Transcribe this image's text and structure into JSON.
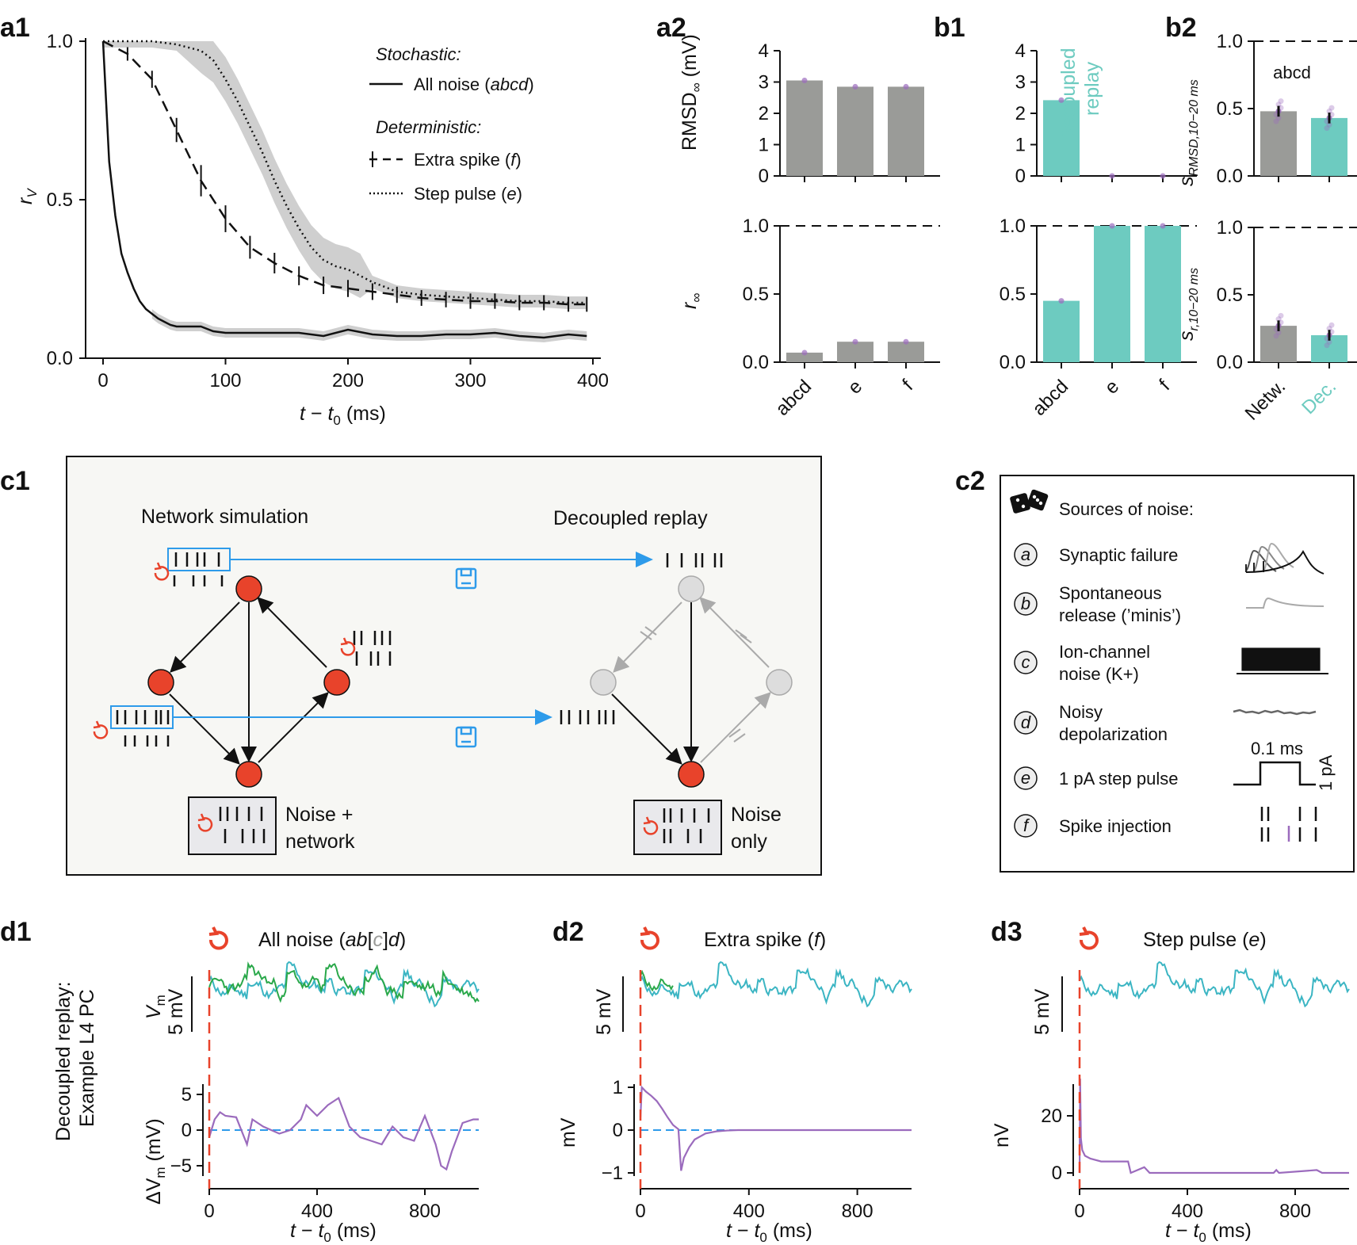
{
  "panel_labels": {
    "a1": "a1",
    "a2": "a2",
    "b1": "b1",
    "b2": "b2",
    "c1": "c1",
    "c2": "c2",
    "d1": "d1",
    "d2": "d2",
    "d3": "d3"
  },
  "colors": {
    "gray_bar": "#9a9b98",
    "teal": "#6dcbc0",
    "purple": "#9b6bbd",
    "green": "#2aa84a",
    "cyan": "#3bb5c3",
    "red": "#e8432b",
    "blue": "#2e9bea",
    "band": "#cfcfcf"
  },
  "a1": {
    "xlabel_t": "t",
    "xlabel_minus": " − ",
    "xlabel_t0": "t",
    "xlabel_sub0": "0",
    "xlabel_unit": " (ms)",
    "ylabel": "r",
    "ylabel_sub": "V",
    "legend": {
      "stochastic_heading": "Stochastic:",
      "all_noise": "All noise (",
      "all_noise_it": "abcd",
      "all_noise_end": ")",
      "deterministic_heading": "Deterministic:",
      "extra_spike": "Extra spike (",
      "extra_spike_it": "f",
      "extra_spike_end": ")",
      "step_pulse": "Step pulse (",
      "step_pulse_it": "e",
      "step_pulse_end": ")"
    }
  },
  "a2": {
    "top_ylabel": "RMSD",
    "top_ylabel_sub": "∞",
    "top_ylabel_unit": " (mV)",
    "bottom_ylabel": "r",
    "bottom_ylabel_sub": "∞"
  },
  "b1": {
    "annotation_line1": "Decoupled",
    "annotation_line2": "replay"
  },
  "b2": {
    "top_ylabel": "s",
    "top_ylabel_sub": "RMSD,10−20 ms",
    "bottom_ylabel": "s",
    "bottom_ylabel_sub": "r,10−20 ms",
    "annotation": "abcd"
  },
  "c1": {
    "network_title": "Network simulation",
    "replay_title": "Decoupled replay",
    "box_left_line1": "Noise +",
    "box_left_line2": "network",
    "box_right_line1": "Noise",
    "box_right_line2": "only"
  },
  "c2": {
    "heading": "Sources of noise:",
    "items": [
      {
        "key": "a",
        "label1": "Synaptic failure",
        "label2": ""
      },
      {
        "key": "b",
        "label1": "Spontaneous",
        "label2": "release (’minis’)"
      },
      {
        "key": "c",
        "label1": "Ion-channel",
        "label2": "noise (K+)"
      },
      {
        "key": "d",
        "label1": "Noisy",
        "label2": "depolarization"
      },
      {
        "key": "e",
        "label1": "1 pA step pulse",
        "label2": ""
      },
      {
        "key": "f",
        "label1": "Spike injection",
        "label2": ""
      }
    ],
    "pulse_width_label": "0.1 ms",
    "pulse_height_label": "1 pA"
  },
  "d": {
    "side_label1": "Decoupled replay:",
    "side_label2": "Example L4 PC",
    "vm_label": "V",
    "vm_sub": "m",
    "scale_5mv": "5 mV",
    "delta_label": "ΔV",
    "delta_sub": "m",
    "delta_unit": " (mV)",
    "mv_label": "mV",
    "nv_label": "nV",
    "d1_title": "All noise (",
    "d1_title_it1": "ab",
    "d1_title_bracket_open": "[",
    "d1_title_c": "c",
    "d1_title_bracket_close": "]",
    "d1_title_it2": "d",
    "d1_title_end": ")",
    "d2_title": "Extra spike (",
    "d2_title_it": "f",
    "d2_title_end": ")",
    "d3_title": "Step pulse (",
    "d3_title_it": "e",
    "d3_title_end": ")",
    "xlabel_t": "t",
    "xlabel_minus": " − ",
    "xlabel_t0": "t",
    "xlabel_sub0": "0",
    "xlabel_unit": " (ms)"
  },
  "chart_data": [
    {
      "id": "a1",
      "type": "line",
      "xlabel": "t − t0 (ms)",
      "ylabel": "rV",
      "xlim": [
        0,
        400
      ],
      "ylim": [
        0,
        1
      ],
      "xticks": [
        "0",
        "100",
        "200",
        "300",
        "400"
      ],
      "yticks": [
        "0.0",
        "0.5",
        "1.0"
      ],
      "series": [
        {
          "name": "All noise (abcd)",
          "style": "solid",
          "x": [
            0,
            5,
            10,
            15,
            20,
            25,
            30,
            35,
            40,
            45,
            50,
            55,
            60,
            70,
            80,
            90,
            100,
            120,
            140,
            160,
            180,
            200,
            220,
            240,
            260,
            280,
            300,
            320,
            340,
            360,
            380,
            395
          ],
          "y": [
            1.0,
            0.62,
            0.45,
            0.33,
            0.27,
            0.22,
            0.18,
            0.155,
            0.14,
            0.125,
            0.115,
            0.105,
            0.1,
            0.1,
            0.1,
            0.085,
            0.08,
            0.08,
            0.08,
            0.08,
            0.07,
            0.09,
            0.075,
            0.07,
            0.07,
            0.075,
            0.075,
            0.08,
            0.07,
            0.065,
            0.075,
            0.07
          ]
        },
        {
          "name": "Extra spike (f)",
          "style": "dashed",
          "x": [
            0,
            20,
            40,
            60,
            80,
            100,
            120,
            140,
            160,
            180,
            200,
            220,
            240,
            260,
            280,
            300,
            320,
            340,
            360,
            380,
            395
          ],
          "y": [
            1.0,
            0.96,
            0.88,
            0.72,
            0.56,
            0.44,
            0.35,
            0.3,
            0.26,
            0.23,
            0.22,
            0.21,
            0.2,
            0.19,
            0.185,
            0.18,
            0.18,
            0.175,
            0.175,
            0.17,
            0.17
          ]
        },
        {
          "name": "Step pulse (e)",
          "style": "dotted",
          "x": [
            0,
            40,
            60,
            80,
            90,
            100,
            110,
            120,
            130,
            140,
            150,
            160,
            170,
            180,
            190,
            200,
            210,
            220,
            240,
            260,
            280,
            300,
            320,
            340,
            360,
            380,
            395
          ],
          "y": [
            1.0,
            1.0,
            0.99,
            0.97,
            0.94,
            0.88,
            0.81,
            0.73,
            0.65,
            0.56,
            0.48,
            0.41,
            0.35,
            0.31,
            0.29,
            0.28,
            0.26,
            0.24,
            0.21,
            0.2,
            0.195,
            0.19,
            0.185,
            0.18,
            0.18,
            0.175,
            0.175
          ]
        }
      ]
    },
    {
      "id": "a2_top",
      "type": "bar",
      "categories": [
        "abcd",
        "e",
        "f"
      ],
      "values": [
        3.05,
        2.85,
        2.85
      ],
      "ylabel": "RMSD∞ (mV)",
      "ylim": [
        0,
        4
      ],
      "yticks": [
        "0",
        "1",
        "2",
        "3",
        "4"
      ]
    },
    {
      "id": "a2_bottom",
      "type": "bar",
      "categories": [
        "abcd",
        "e",
        "f"
      ],
      "values": [
        0.07,
        0.15,
        0.15
      ],
      "ylabel": "r∞",
      "ylim": [
        0,
        1
      ],
      "yticks": [
        "0.0",
        "0.5",
        "1.0"
      ],
      "reference_line": 1.0
    },
    {
      "id": "b1_top",
      "type": "bar",
      "categories": [
        "abcd",
        "e",
        "f"
      ],
      "values": [
        2.42,
        0,
        0
      ],
      "ylim": [
        0,
        4
      ],
      "yticks": [
        "0",
        "1",
        "2",
        "3",
        "4"
      ]
    },
    {
      "id": "b1_bottom",
      "type": "bar",
      "categories": [
        "abcd",
        "e",
        "f"
      ],
      "values": [
        0.45,
        1.0,
        1.0
      ],
      "ylim": [
        0,
        1
      ],
      "yticks": [
        "0.0",
        "0.5",
        "1.0"
      ],
      "reference_line": 1.0
    },
    {
      "id": "b2_top",
      "type": "bar",
      "categories": [
        "Netw.",
        "Dec."
      ],
      "values": [
        0.48,
        0.43
      ],
      "ylabel": "sRMSD,10−20 ms",
      "ylim": [
        0,
        1
      ],
      "yticks": [
        "0.0",
        "0.5",
        "1.0"
      ],
      "reference_line": 1.0
    },
    {
      "id": "b2_bottom",
      "type": "bar",
      "categories": [
        "Netw.",
        "Dec."
      ],
      "values": [
        0.27,
        0.2
      ],
      "ylabel": "sr,10−20 ms",
      "ylim": [
        0,
        1
      ],
      "yticks": [
        "0.0",
        "0.5",
        "1.0"
      ],
      "reference_line": 1.0
    },
    {
      "id": "d1_delta",
      "type": "line",
      "xlabel": "t − t0 (ms)",
      "ylabel": "ΔVm (mV)",
      "xlim": [
        0,
        1000
      ],
      "ylim": [
        -6,
        6
      ],
      "xticks": [
        "0",
        "400",
        "800"
      ],
      "yticks": [
        "−5",
        "0",
        "5"
      ],
      "series": [
        {
          "name": "ΔVm",
          "x": [
            0,
            20,
            40,
            60,
            100,
            140,
            160,
            200,
            260,
            300,
            340,
            360,
            400,
            440,
            480,
            520,
            560,
            600,
            640,
            680,
            720,
            760,
            800,
            840,
            860,
            880,
            900,
            940,
            980,
            1000
          ],
          "y": [
            -1,
            1.5,
            2.5,
            2,
            1.8,
            -2,
            1.5,
            0.5,
            -0.5,
            0,
            1.5,
            3.5,
            2,
            3.5,
            4.5,
            0.5,
            -1,
            -1.5,
            -2,
            0.5,
            -1,
            -1.5,
            2,
            -2,
            -5,
            -5.5,
            -3,
            1,
            1.5,
            1.5
          ]
        }
      ]
    },
    {
      "id": "d2_delta",
      "type": "line",
      "xlabel": "t − t0 (ms)",
      "ylabel": "mV",
      "xlim": [
        0,
        1000
      ],
      "ylim": [
        -1,
        1
      ],
      "xticks": [
        "0",
        "400",
        "800"
      ],
      "yticks": [
        "−1",
        "0",
        "1"
      ],
      "series": [
        {
          "name": "ΔVm",
          "x": [
            0,
            5,
            20,
            40,
            60,
            80,
            100,
            120,
            140,
            150,
            160,
            180,
            200,
            240,
            280,
            320,
            360,
            400,
            500,
            1000
          ],
          "y": [
            0.3,
            1.0,
            0.9,
            0.8,
            0.68,
            0.5,
            0.3,
            0.12,
            0.02,
            -0.95,
            -0.65,
            -0.4,
            -0.22,
            -0.08,
            -0.03,
            -0.01,
            0,
            0,
            0,
            0
          ]
        }
      ]
    },
    {
      "id": "d3_delta",
      "type": "line",
      "xlabel": "t − t0 (ms)",
      "ylabel": "nV",
      "xlim": [
        0,
        1000
      ],
      "ylim": [
        0,
        30
      ],
      "xticks": [
        "0",
        "400",
        "800"
      ],
      "yticks": [
        "0",
        "20"
      ],
      "series": [
        {
          "name": "ΔVm",
          "x": [
            0,
            2,
            5,
            10,
            20,
            40,
            80,
            120,
            160,
            180,
            190,
            240,
            260,
            300,
            600,
            720,
            730,
            740,
            880,
            900,
            1000
          ],
          "y": [
            0,
            33,
            12,
            8,
            6,
            5,
            4,
            4,
            4,
            4,
            0,
            2,
            0,
            0,
            0,
            0,
            1,
            0,
            1,
            0,
            0
          ]
        }
      ]
    }
  ]
}
